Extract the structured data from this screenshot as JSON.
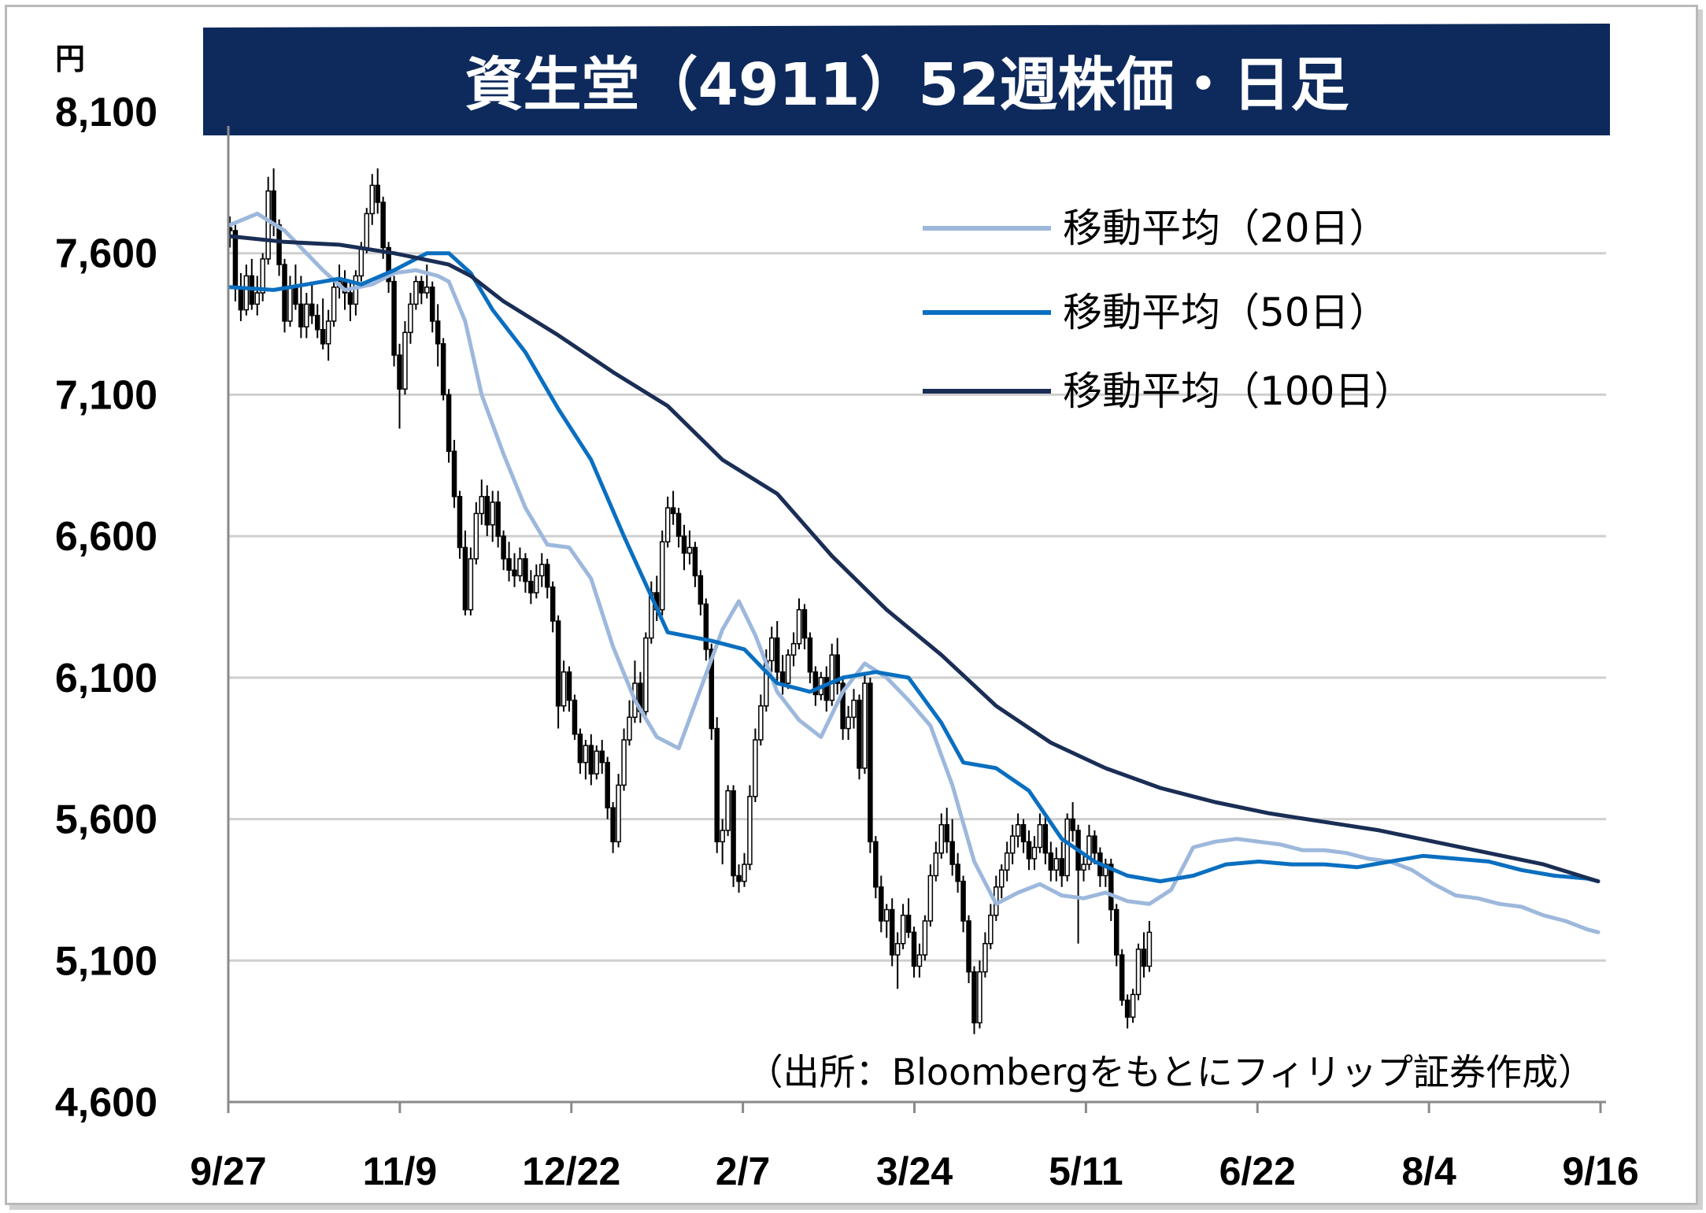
{
  "chart_data": {
    "type": "candlestick",
    "title": "資生堂（4911）52週株価・日足",
    "ylabel": "円",
    "ylim": [
      4600,
      8100
    ],
    "yticks": [
      "8,100",
      "7,600",
      "7,100",
      "6,600",
      "6,100",
      "5,600",
      "5,100",
      "4,600"
    ],
    "ytick_values": [
      8100,
      7600,
      7100,
      6600,
      6100,
      5600,
      5100,
      4600
    ],
    "xticks": [
      "9/27",
      "11/9",
      "12/22",
      "2/7",
      "3/24",
      "5/11",
      "6/22",
      "8/4",
      "9/16"
    ],
    "source": "（出所：Bloombergをもとにフィリップ証券作成）",
    "grid": true,
    "legend_position": "top-right",
    "colors": {
      "title_band": "#0e2a5c",
      "ma20": "#9db8dc",
      "ma50": "#0a6fc0",
      "ma100": "#1a2e55",
      "candle": "#000000",
      "grid": "#cfcfcf"
    },
    "series": [
      {
        "name": "移動平均（20日）",
        "x": [
          0,
          5,
          10,
          17,
          21,
          26,
          30,
          34,
          38,
          40,
          43,
          46,
          50,
          54,
          58,
          62,
          66,
          70,
          74,
          78,
          82,
          86,
          90,
          93,
          96,
          100,
          104,
          108,
          112,
          116,
          120,
          124,
          128,
          132,
          136,
          140,
          144,
          148,
          152,
          156,
          160,
          164,
          168,
          172,
          176,
          180,
          184,
          188,
          192,
          196,
          200,
          204,
          208,
          212,
          216,
          220,
          224,
          228,
          232,
          236,
          240,
          244,
          248,
          250
        ],
        "values": [
          7700,
          7740,
          7680,
          7540,
          7470,
          7490,
          7530,
          7540,
          7520,
          7500,
          7360,
          7100,
          6890,
          6700,
          6570,
          6560,
          6450,
          6210,
          6020,
          5890,
          5850,
          6060,
          6270,
          6370,
          6250,
          6050,
          5950,
          5890,
          6050,
          6150,
          6100,
          6020,
          5930,
          5720,
          5450,
          5300,
          5340,
          5370,
          5330,
          5320,
          5340,
          5310,
          5300,
          5350,
          5500,
          5520,
          5530,
          5520,
          5510,
          5490,
          5490,
          5480,
          5460,
          5450,
          5420,
          5370,
          5330,
          5320,
          5300,
          5290,
          5260,
          5240,
          5210,
          5200
        ]
      },
      {
        "name": "移動平均（50日）",
        "x": [
          0,
          8,
          14,
          20,
          24,
          30,
          36,
          40,
          44,
          48,
          54,
          60,
          66,
          72,
          80,
          88,
          94,
          100,
          106,
          112,
          118,
          124,
          130,
          134,
          140,
          146,
          152,
          158,
          164,
          170,
          176,
          182,
          188,
          194,
          200,
          206,
          212,
          218,
          224,
          230,
          236,
          242,
          248,
          250
        ],
        "values": [
          7480,
          7470,
          7490,
          7510,
          7490,
          7540,
          7600,
          7600,
          7530,
          7400,
          7250,
          7050,
          6870,
          6600,
          6260,
          6230,
          6200,
          6080,
          6050,
          6100,
          6120,
          6100,
          5940,
          5800,
          5780,
          5700,
          5530,
          5450,
          5400,
          5380,
          5400,
          5440,
          5450,
          5440,
          5440,
          5430,
          5450,
          5470,
          5460,
          5450,
          5420,
          5400,
          5390,
          5380
        ]
      },
      {
        "name": "移動平均（100日）",
        "x": [
          0,
          10,
          20,
          30,
          40,
          44,
          50,
          60,
          70,
          80,
          90,
          100,
          110,
          120,
          130,
          140,
          150,
          160,
          170,
          180,
          190,
          200,
          210,
          220,
          230,
          240,
          250
        ],
        "values": [
          7660,
          7640,
          7630,
          7600,
          7560,
          7520,
          7430,
          7310,
          7180,
          7060,
          6870,
          6750,
          6530,
          6340,
          6180,
          6000,
          5870,
          5780,
          5710,
          5660,
          5620,
          5590,
          5560,
          5520,
          5480,
          5440,
          5380
        ]
      }
    ],
    "candles": [
      [
        7690,
        7730,
        7620,
        7680
      ],
      [
        7680,
        7700,
        7430,
        7480
      ],
      [
        7480,
        7530,
        7360,
        7400
      ],
      [
        7400,
        7560,
        7380,
        7520
      ],
      [
        7520,
        7580,
        7400,
        7420
      ],
      [
        7420,
        7520,
        7380,
        7460
      ],
      [
        7460,
        7600,
        7430,
        7580
      ],
      [
        7580,
        7870,
        7560,
        7820
      ],
      [
        7820,
        7900,
        7660,
        7700
      ],
      [
        7700,
        7720,
        7520,
        7560
      ],
      [
        7560,
        7580,
        7320,
        7360
      ],
      [
        7360,
        7520,
        7340,
        7480
      ],
      [
        7480,
        7560,
        7400,
        7420
      ],
      [
        7420,
        7520,
        7300,
        7340
      ],
      [
        7340,
        7460,
        7300,
        7420
      ],
      [
        7420,
        7500,
        7350,
        7380
      ],
      [
        7380,
        7420,
        7300,
        7330
      ],
      [
        7330,
        7440,
        7260,
        7280
      ],
      [
        7280,
        7400,
        7220,
        7360
      ],
      [
        7360,
        7500,
        7340,
        7480
      ],
      [
        7480,
        7560,
        7440,
        7500
      ],
      [
        7500,
        7540,
        7400,
        7460
      ],
      [
        7460,
        7500,
        7360,
        7420
      ],
      [
        7420,
        7540,
        7380,
        7520
      ],
      [
        7520,
        7640,
        7500,
        7620
      ],
      [
        7620,
        7760,
        7600,
        7740
      ],
      [
        7740,
        7880,
        7700,
        7840
      ],
      [
        7840,
        7900,
        7740,
        7780
      ],
      [
        7780,
        7800,
        7580,
        7620
      ],
      [
        7620,
        7640,
        7460,
        7500
      ],
      [
        7500,
        7520,
        7200,
        7240
      ],
      [
        7240,
        7280,
        6980,
        7120
      ],
      [
        7120,
        7360,
        7100,
        7320
      ],
      [
        7320,
        7460,
        7280,
        7420
      ],
      [
        7420,
        7520,
        7400,
        7500
      ],
      [
        7500,
        7520,
        7420,
        7460
      ],
      [
        7460,
        7560,
        7440,
        7480
      ],
      [
        7480,
        7500,
        7320,
        7360
      ],
      [
        7360,
        7420,
        7200,
        7280
      ],
      [
        7280,
        7300,
        7080,
        7100
      ],
      [
        7100,
        7120,
        6860,
        6900
      ],
      [
        6900,
        6940,
        6700,
        6740
      ],
      [
        6740,
        6760,
        6520,
        6560
      ],
      [
        6560,
        6620,
        6320,
        6340
      ],
      [
        6340,
        6560,
        6320,
        6520
      ],
      [
        6520,
        6720,
        6500,
        6680
      ],
      [
        6680,
        6800,
        6640,
        6740
      ],
      [
        6740,
        6780,
        6600,
        6640
      ],
      [
        6640,
        6760,
        6580,
        6720
      ],
      [
        6720,
        6760,
        6560,
        6600
      ],
      [
        6600,
        6620,
        6480,
        6520
      ],
      [
        6520,
        6580,
        6440,
        6480
      ],
      [
        6480,
        6540,
        6420,
        6460
      ],
      [
        6460,
        6560,
        6440,
        6520
      ],
      [
        6520,
        6540,
        6400,
        6440
      ],
      [
        6440,
        6480,
        6360,
        6400
      ],
      [
        6400,
        6500,
        6380,
        6460
      ],
      [
        6460,
        6540,
        6420,
        6500
      ],
      [
        6500,
        6520,
        6380,
        6420
      ],
      [
        6420,
        6440,
        6260,
        6300
      ],
      [
        6300,
        6320,
        5920,
        6000
      ],
      [
        6000,
        6160,
        5980,
        6120
      ],
      [
        6120,
        6140,
        5980,
        6020
      ],
      [
        6020,
        6040,
        5880,
        5900
      ],
      [
        5900,
        5920,
        5760,
        5800
      ],
      [
        5800,
        5880,
        5740,
        5860
      ],
      [
        5860,
        5900,
        5720,
        5760
      ],
      [
        5760,
        5860,
        5740,
        5840
      ],
      [
        5840,
        5880,
        5760,
        5800
      ],
      [
        5800,
        5820,
        5600,
        5640
      ],
      [
        5640,
        5660,
        5480,
        5520
      ],
      [
        5520,
        5760,
        5500,
        5720
      ],
      [
        5720,
        5920,
        5700,
        5880
      ],
      [
        5880,
        6020,
        5860,
        5960
      ],
      [
        5960,
        6160,
        5940,
        6080
      ],
      [
        6080,
        6120,
        5940,
        5980
      ],
      [
        5980,
        6260,
        5960,
        6240
      ],
      [
        6240,
        6440,
        6220,
        6400
      ],
      [
        6400,
        6460,
        6300,
        6340
      ],
      [
        6340,
        6620,
        6320,
        6580
      ],
      [
        6580,
        6740,
        6560,
        6700
      ],
      [
        6700,
        6760,
        6640,
        6680
      ],
      [
        6680,
        6700,
        6560,
        6600
      ],
      [
        6600,
        6640,
        6480,
        6540
      ],
      [
        6540,
        6620,
        6500,
        6560
      ],
      [
        6560,
        6580,
        6420,
        6460
      ],
      [
        6460,
        6480,
        6320,
        6360
      ],
      [
        6360,
        6380,
        6160,
        6200
      ],
      [
        6200,
        6220,
        5880,
        5920
      ],
      [
        5920,
        5960,
        5480,
        5520
      ],
      [
        5520,
        5600,
        5440,
        5560
      ],
      [
        5560,
        5720,
        5540,
        5700
      ],
      [
        5700,
        5720,
        5360,
        5400
      ],
      [
        5400,
        5440,
        5340,
        5380
      ],
      [
        5380,
        5480,
        5360,
        5440
      ],
      [
        5440,
        5720,
        5420,
        5680
      ],
      [
        5680,
        5920,
        5660,
        5880
      ],
      [
        5880,
        6040,
        5860,
        6000
      ],
      [
        6000,
        6200,
        5980,
        6160
      ],
      [
        6160,
        6280,
        6120,
        6240
      ],
      [
        6240,
        6300,
        6080,
        6120
      ],
      [
        6120,
        6180,
        6040,
        6080
      ],
      [
        6080,
        6200,
        6060,
        6180
      ],
      [
        6180,
        6260,
        6140,
        6220
      ],
      [
        6220,
        6380,
        6200,
        6340
      ],
      [
        6340,
        6360,
        6200,
        6240
      ],
      [
        6240,
        6260,
        6080,
        6120
      ],
      [
        6120,
        6140,
        6000,
        6040
      ],
      [
        6040,
        6120,
        6020,
        6100
      ],
      [
        6100,
        6140,
        5980,
        6020
      ],
      [
        6020,
        6220,
        6000,
        6180
      ],
      [
        6180,
        6240,
        6040,
        6080
      ],
      [
        6080,
        6100,
        5880,
        5920
      ],
      [
        5920,
        6000,
        5880,
        5960
      ],
      [
        5960,
        6060,
        5920,
        6020
      ],
      [
        6020,
        6040,
        5740,
        5780
      ],
      [
        5780,
        6120,
        5760,
        6080
      ],
      [
        6080,
        6100,
        5480,
        5520
      ],
      [
        5520,
        5540,
        5320,
        5360
      ],
      [
        5360,
        5400,
        5200,
        5240
      ],
      [
        5240,
        5300,
        5180,
        5280
      ],
      [
        5280,
        5320,
        5080,
        5120
      ],
      [
        5120,
        5200,
        5000,
        5160
      ],
      [
        5160,
        5300,
        5140,
        5260
      ],
      [
        5260,
        5320,
        5180,
        5200
      ],
      [
        5200,
        5220,
        5040,
        5080
      ],
      [
        5080,
        5160,
        5040,
        5120
      ],
      [
        5120,
        5260,
        5100,
        5240
      ],
      [
        5240,
        5440,
        5220,
        5400
      ],
      [
        5400,
        5520,
        5380,
        5480
      ],
      [
        5480,
        5620,
        5460,
        5580
      ],
      [
        5580,
        5640,
        5480,
        5520
      ],
      [
        5520,
        5600,
        5400,
        5440
      ],
      [
        5440,
        5480,
        5340,
        5380
      ],
      [
        5380,
        5400,
        5200,
        5240
      ],
      [
        5240,
        5260,
        5020,
        5060
      ],
      [
        5060,
        5080,
        4840,
        4880
      ],
      [
        4880,
        5100,
        4860,
        5060
      ],
      [
        5060,
        5200,
        5040,
        5160
      ],
      [
        5160,
        5300,
        5140,
        5260
      ],
      [
        5260,
        5400,
        5240,
        5360
      ],
      [
        5360,
        5440,
        5320,
        5420
      ],
      [
        5420,
        5520,
        5380,
        5480
      ],
      [
        5480,
        5580,
        5440,
        5540
      ],
      [
        5540,
        5620,
        5500,
        5580
      ],
      [
        5580,
        5600,
        5480,
        5520
      ],
      [
        5520,
        5560,
        5420,
        5460
      ],
      [
        5460,
        5540,
        5420,
        5500
      ],
      [
        5500,
        5620,
        5480,
        5580
      ],
      [
        5580,
        5620,
        5440,
        5480
      ],
      [
        5480,
        5520,
        5380,
        5420
      ],
      [
        5420,
        5500,
        5380,
        5460
      ],
      [
        5460,
        5520,
        5360,
        5400
      ],
      [
        5400,
        5620,
        5380,
        5600
      ],
      [
        5600,
        5660,
        5520,
        5560
      ],
      [
        5560,
        5580,
        5160,
        5420
      ],
      [
        5420,
        5480,
        5380,
        5440
      ],
      [
        5440,
        5580,
        5420,
        5540
      ],
      [
        5540,
        5560,
        5440,
        5480
      ],
      [
        5480,
        5500,
        5360,
        5400
      ],
      [
        5400,
        5460,
        5360,
        5440
      ],
      [
        5440,
        5460,
        5240,
        5280
      ],
      [
        5280,
        5300,
        5080,
        5120
      ],
      [
        5120,
        5140,
        4940,
        4960
      ],
      [
        4960,
        4980,
        4860,
        4900
      ],
      [
        4900,
        5000,
        4880,
        4980
      ],
      [
        4980,
        5160,
        4960,
        5140
      ],
      [
        5140,
        5200,
        5040,
        5080
      ],
      [
        5080,
        5240,
        5060,
        5200
      ]
    ]
  }
}
